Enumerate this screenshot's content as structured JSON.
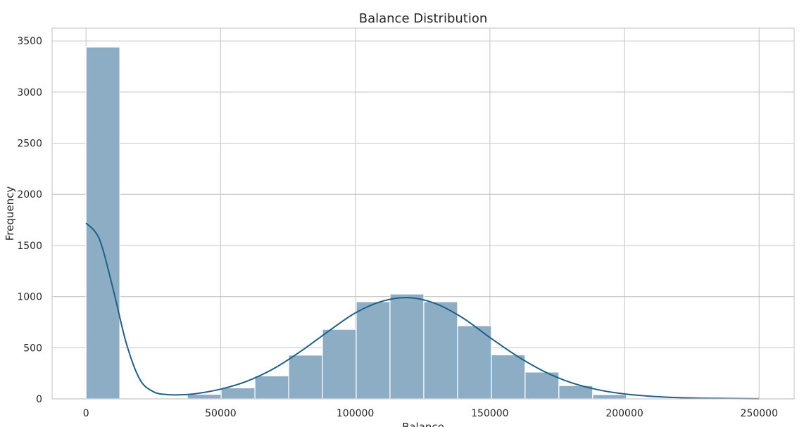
{
  "chart_data": {
    "type": "bar",
    "title": "Balance Distribution",
    "xlabel": "Balance",
    "ylabel": "Frequency",
    "xlim": [
      -12600,
      263000
    ],
    "ylim": [
      0,
      3625
    ],
    "xticks": [
      0,
      50000,
      100000,
      150000,
      200000,
      250000
    ],
    "yticks": [
      0,
      500,
      1000,
      1500,
      2000,
      2500,
      3000,
      3500
    ],
    "grid": true,
    "bin_width": 12544.9,
    "bins": [
      {
        "start": 0,
        "count": 3440
      },
      {
        "start": 12545,
        "count": 0
      },
      {
        "start": 25090,
        "count": 0
      },
      {
        "start": 37635,
        "count": 45
      },
      {
        "start": 50180,
        "count": 108
      },
      {
        "start": 62725,
        "count": 225
      },
      {
        "start": 75269,
        "count": 428
      },
      {
        "start": 87814,
        "count": 680
      },
      {
        "start": 100359,
        "count": 950
      },
      {
        "start": 112904,
        "count": 1025
      },
      {
        "start": 125449,
        "count": 950
      },
      {
        "start": 137994,
        "count": 715
      },
      {
        "start": 150539,
        "count": 430
      },
      {
        "start": 163084,
        "count": 262
      },
      {
        "start": 175629,
        "count": 130
      },
      {
        "start": 188174,
        "count": 42
      },
      {
        "start": 200719,
        "count": 8
      },
      {
        "start": 213264,
        "count": 3
      },
      {
        "start": 225809,
        "count": 1
      },
      {
        "start": 238354,
        "count": 2
      }
    ],
    "kde": {
      "x": [
        0,
        5000,
        10000,
        15000,
        20000,
        25000,
        30000,
        35000,
        40000,
        50000,
        60000,
        70000,
        80000,
        90000,
        100000,
        110000,
        120000,
        130000,
        140000,
        150000,
        160000,
        170000,
        180000,
        190000,
        200000,
        210000,
        220000,
        230000,
        240000,
        250000
      ],
      "y": [
        1720,
        1560,
        1080,
        540,
        190,
        70,
        42,
        40,
        48,
        95,
        175,
        300,
        470,
        660,
        840,
        955,
        990,
        930,
        790,
        600,
        420,
        270,
        160,
        90,
        48,
        25,
        12,
        6,
        3,
        1
      ]
    },
    "colors": {
      "bar_fill": "#8dadc5",
      "bar_edge": "#ffffff",
      "kde_line": "#215f87",
      "grid": "#cccccc",
      "frame": "#cccccc"
    }
  }
}
